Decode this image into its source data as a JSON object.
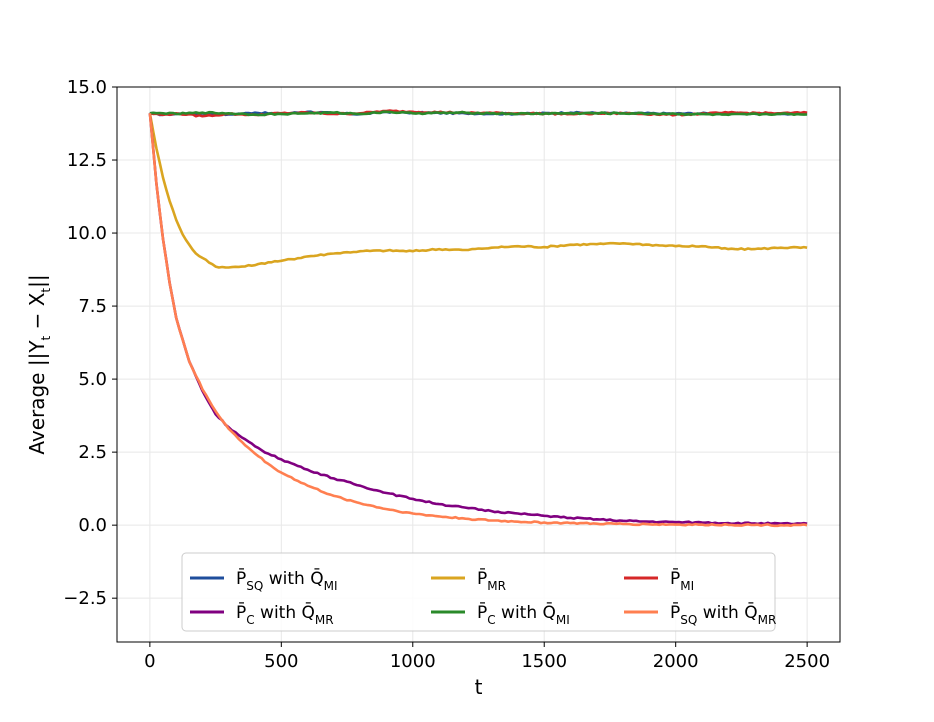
{
  "chart_data": {
    "type": "line",
    "title": "",
    "xlabel": "t",
    "ylabel": "Average ||Y_t − X_t||",
    "ylabel_parts": {
      "prefix": "Average ||Y",
      "sub1": "t",
      "middle": " − X",
      "sub2": "t",
      "suffix": "||"
    },
    "xlim": [
      -125,
      2625
    ],
    "ylim": [
      -4.0,
      15.0
    ],
    "xticks": [
      0,
      500,
      1000,
      1500,
      2000,
      2500
    ],
    "yticks": [
      -2.5,
      0.0,
      2.5,
      5.0,
      7.5,
      10.0,
      12.5,
      15.0
    ],
    "ytick_labels": [
      "−2.5",
      "0.0",
      "2.5",
      "5.0",
      "7.5",
      "10.0",
      "12.5",
      "15.0"
    ],
    "grid": true,
    "legend_position": "lower-center",
    "legend_columns": 3,
    "series": [
      {
        "name": "P̄_SQ with Q̄_MI",
        "label_parts": {
          "main": "P̄",
          "sub": "SQ",
          "mid": " with Q̄",
          "sub2": "MI"
        },
        "color": "#1f4e9c",
        "x": [
          0,
          50,
          100,
          200,
          300,
          400,
          500,
          600,
          700,
          800,
          900,
          1000,
          1200,
          1400,
          1600,
          1800,
          2000,
          2200,
          2400,
          2500
        ],
        "values": [
          14.1,
          14.05,
          14.08,
          14.1,
          14.06,
          14.12,
          14.08,
          14.15,
          14.1,
          14.07,
          14.15,
          14.12,
          14.1,
          14.08,
          14.12,
          14.1,
          14.09,
          14.1,
          14.08,
          14.1
        ]
      },
      {
        "name": "P̄_MR",
        "label_parts": {
          "main": "P̄",
          "sub": "MR",
          "mid": "",
          "sub2": ""
        },
        "color": "#daa520",
        "x": [
          0,
          25,
          50,
          75,
          100,
          125,
          150,
          175,
          200,
          250,
          300,
          350,
          400,
          450,
          500,
          600,
          700,
          800,
          900,
          1000,
          1100,
          1200,
          1300,
          1400,
          1500,
          1600,
          1700,
          1800,
          1900,
          2000,
          2100,
          2200,
          2300,
          2400,
          2500
        ],
        "values": [
          14.1,
          12.9,
          11.9,
          11.1,
          10.45,
          9.95,
          9.6,
          9.3,
          9.15,
          8.85,
          8.82,
          8.85,
          8.9,
          9.0,
          9.05,
          9.2,
          9.3,
          9.38,
          9.4,
          9.38,
          9.45,
          9.42,
          9.5,
          9.55,
          9.52,
          9.6,
          9.62,
          9.65,
          9.6,
          9.55,
          9.55,
          9.45,
          9.45,
          9.5,
          9.5
        ]
      },
      {
        "name": "P̄_MI",
        "label_parts": {
          "main": "P̄",
          "sub": "MI",
          "mid": "",
          "sub2": ""
        },
        "color": "#d62728",
        "x": [
          0,
          50,
          100,
          200,
          300,
          400,
          500,
          600,
          700,
          800,
          900,
          1000,
          1200,
          1400,
          1600,
          1800,
          2000,
          2200,
          2400,
          2500
        ],
        "values": [
          14.1,
          14.05,
          14.1,
          14.0,
          14.08,
          14.05,
          14.1,
          14.12,
          14.08,
          14.1,
          14.18,
          14.15,
          14.12,
          14.1,
          14.08,
          14.1,
          14.05,
          14.12,
          14.1,
          14.12
        ]
      },
      {
        "name": "P̄_C with Q̄_MR",
        "label_parts": {
          "main": "P̄",
          "sub": "C",
          "mid": " with Q̄",
          "sub2": "MR"
        },
        "color": "#800080",
        "x": [
          0,
          25,
          50,
          75,
          100,
          150,
          200,
          250,
          300,
          350,
          400,
          450,
          500,
          600,
          700,
          800,
          900,
          1000,
          1100,
          1200,
          1300,
          1400,
          1500,
          1600,
          1700,
          1800,
          1900,
          2000,
          2100,
          2200,
          2300,
          2400,
          2500
        ],
        "values": [
          14.1,
          11.7,
          9.8,
          8.3,
          7.1,
          5.6,
          4.6,
          3.8,
          3.35,
          3.0,
          2.7,
          2.45,
          2.25,
          1.9,
          1.6,
          1.35,
          1.1,
          0.9,
          0.72,
          0.6,
          0.48,
          0.4,
          0.32,
          0.25,
          0.2,
          0.15,
          0.12,
          0.1,
          0.09,
          0.07,
          0.06,
          0.05,
          0.05
        ]
      },
      {
        "name": "P̄_C with Q̄_MI",
        "label_parts": {
          "main": "P̄",
          "sub": "C",
          "mid": " with Q̄",
          "sub2": "MI"
        },
        "color": "#2a8a2a",
        "x": [
          0,
          50,
          100,
          200,
          300,
          400,
          500,
          600,
          700,
          800,
          900,
          1000,
          1200,
          1400,
          1600,
          1800,
          2000,
          2200,
          2400,
          2500
        ],
        "values": [
          14.1,
          14.1,
          14.08,
          14.12,
          14.1,
          14.06,
          14.08,
          14.1,
          14.12,
          14.08,
          14.15,
          14.1,
          14.12,
          14.08,
          14.1,
          14.1,
          14.08,
          14.05,
          14.08,
          14.06
        ]
      },
      {
        "name": "P̄_SQ with Q̄_MR",
        "label_parts": {
          "main": "P̄",
          "sub": "SQ",
          "mid": " with Q̄",
          "sub2": "MR"
        },
        "color": "#ff7f50",
        "x": [
          0,
          25,
          50,
          75,
          100,
          150,
          200,
          250,
          300,
          350,
          400,
          450,
          500,
          600,
          700,
          800,
          900,
          1000,
          1100,
          1200,
          1300,
          1400,
          1500,
          1600,
          1700,
          1800,
          1900,
          2000,
          2100,
          2200,
          2300,
          2400,
          2500
        ],
        "values": [
          14.1,
          11.7,
          9.8,
          8.3,
          7.1,
          5.6,
          4.65,
          3.9,
          3.3,
          2.85,
          2.45,
          2.1,
          1.8,
          1.35,
          1.0,
          0.75,
          0.55,
          0.4,
          0.3,
          0.22,
          0.16,
          0.12,
          0.09,
          0.07,
          0.05,
          0.04,
          0.03,
          0.02,
          0.02,
          0.01,
          0.01,
          0.0,
          0.0
        ]
      }
    ]
  }
}
